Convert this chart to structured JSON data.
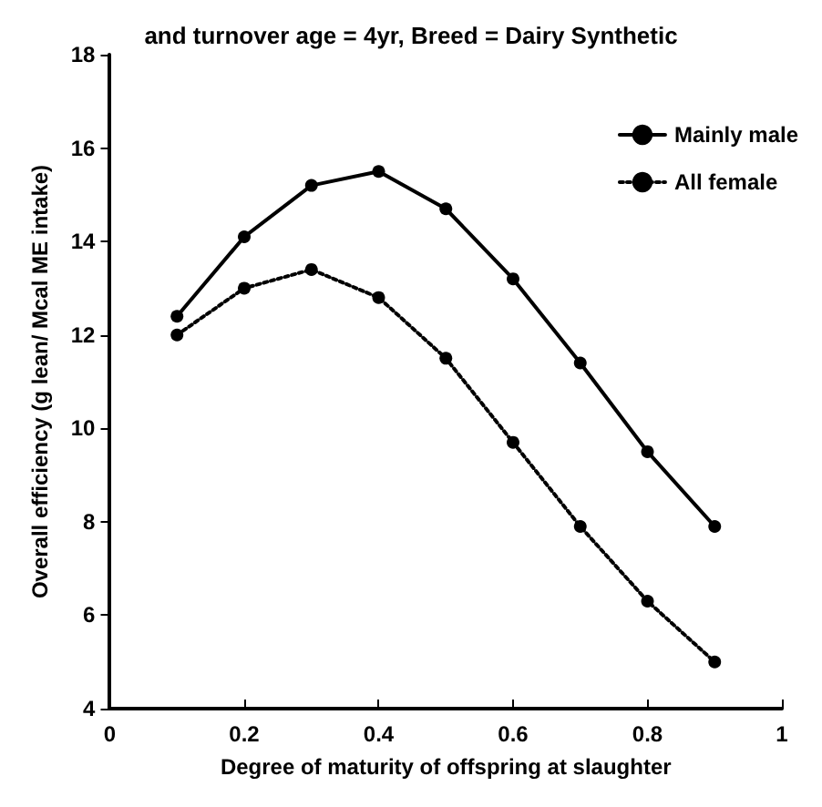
{
  "chart_data": {
    "type": "line",
    "title": "and turnover age = 4yr, Breed = Dairy Synthetic",
    "xlabel": "Degree of maturity of offspring at slaughter",
    "ylabel": "Overall efficiency (g lean/ Mcal ME intake)",
    "x": [
      0.1,
      0.2,
      0.3,
      0.4,
      0.5,
      0.6,
      0.7,
      0.8,
      0.9
    ],
    "series": [
      {
        "name": "Mainly male",
        "color": "#000000",
        "line_style": "solid",
        "values": [
          12.4,
          14.1,
          15.2,
          15.5,
          14.7,
          13.2,
          11.4,
          9.5,
          7.9
        ]
      },
      {
        "name": "All female",
        "color": "#000000",
        "line_style": "dotted",
        "values": [
          12.0,
          13.0,
          13.4,
          12.8,
          11.5,
          9.7,
          7.9,
          6.3,
          5.0
        ]
      }
    ],
    "xlim": [
      0,
      1
    ],
    "xticks": [
      0,
      0.2,
      0.4,
      0.6,
      0.8,
      1
    ],
    "ylim": [
      4,
      18
    ],
    "yticks": [
      4,
      6,
      8,
      10,
      12,
      14,
      16,
      18
    ],
    "marker": "circle",
    "grid": false,
    "legend": "top right"
  }
}
